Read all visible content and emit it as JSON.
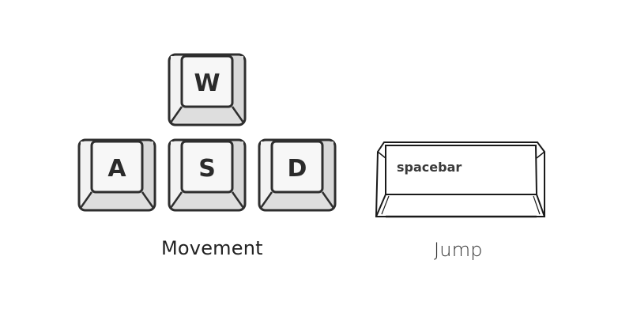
{
  "keys": {
    "w": "W",
    "a": "A",
    "s": "S",
    "d": "D",
    "spacebar": "spacebar"
  },
  "captions": {
    "movement": "Movement",
    "jump": "Jump"
  }
}
